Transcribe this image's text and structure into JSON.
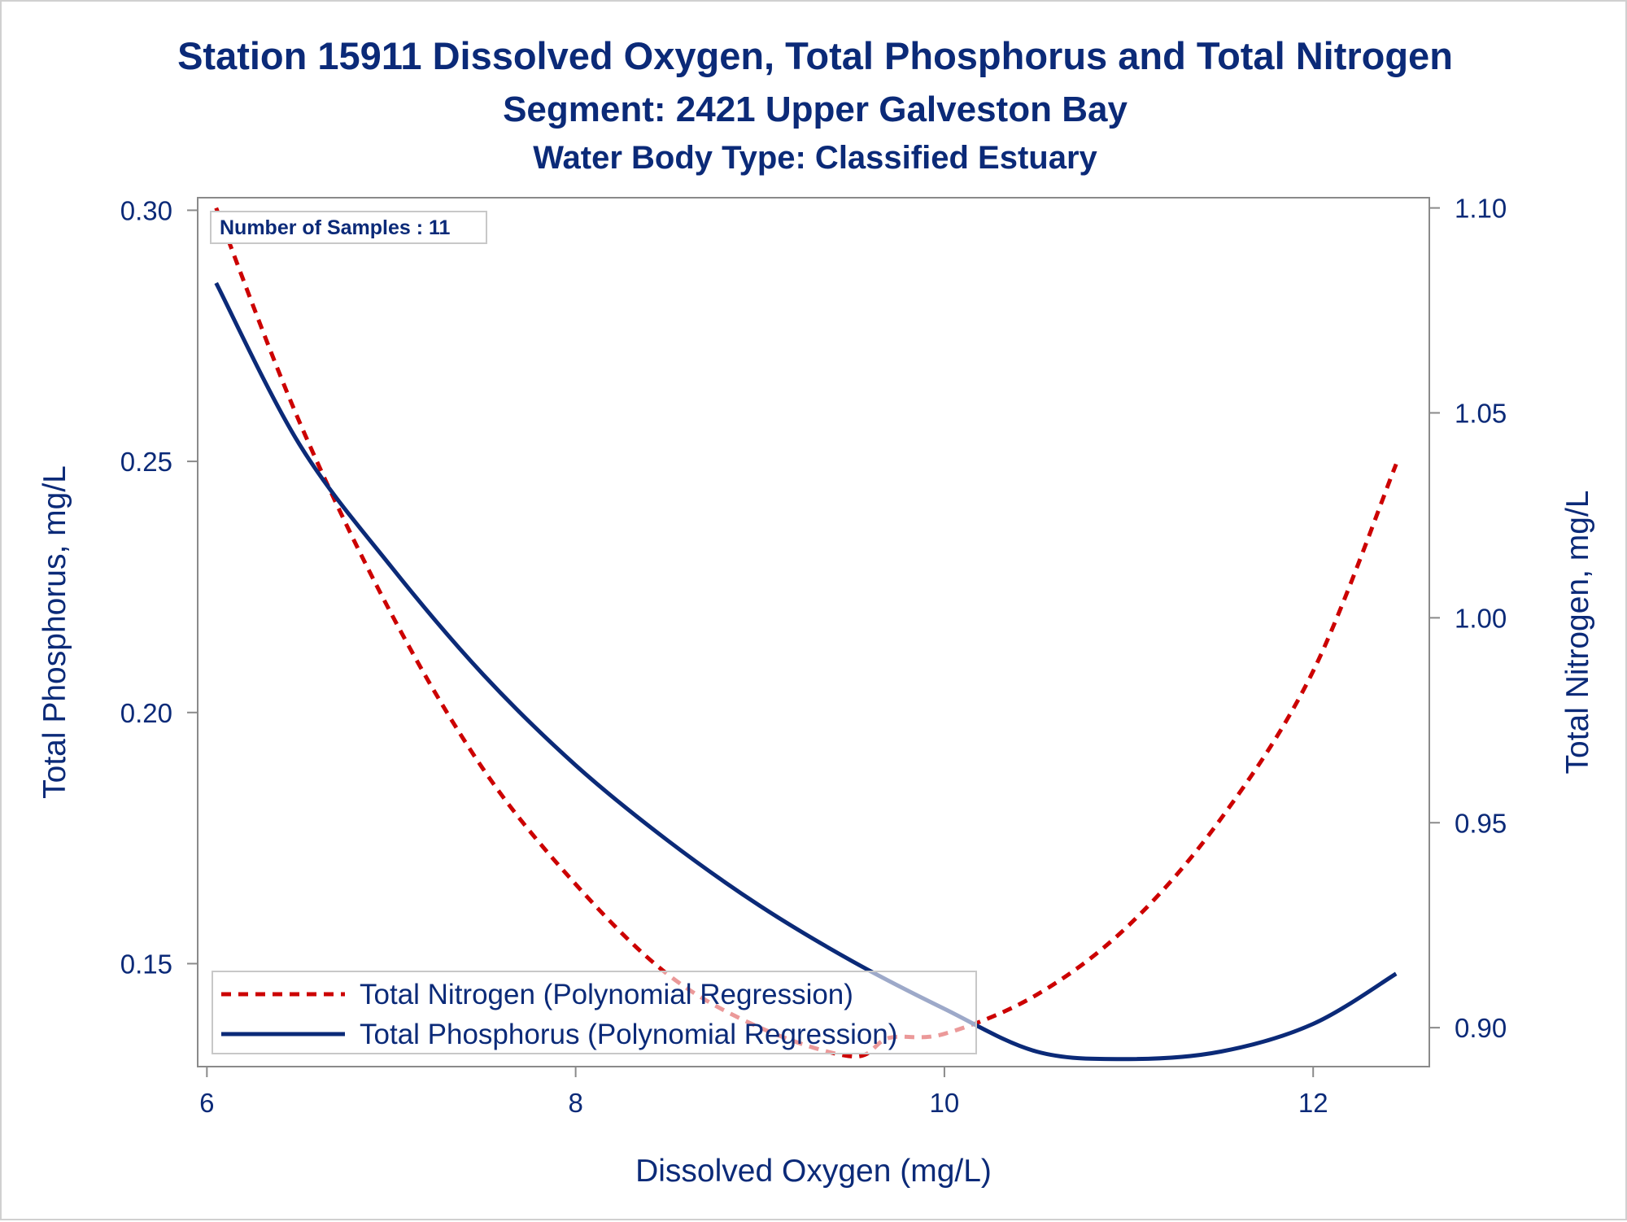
{
  "chart_data": {
    "type": "line",
    "title": "Station 15911  Dissolved Oxygen, Total Phosphorus and Total Nitrogen",
    "subtitle": "Segment: 2421  Upper Galveston Bay",
    "subtitle2": "Water Body Type: Classified Estuary",
    "xlabel": "Dissolved Oxygen (mg/L)",
    "ylabel": "Total Phosphorus, mg/L",
    "y2label": "Total Nitrogen, mg/L",
    "xlim": [
      5.95,
      12.63
    ],
    "ylim": [
      0.1295,
      0.3025
    ],
    "y2lim": [
      0.8905,
      1.1025
    ],
    "x_ticks": [
      "6",
      "8",
      "10",
      "12"
    ],
    "y_ticks": [
      "0.15",
      "0.20",
      "0.25",
      "0.30"
    ],
    "y2_ticks": [
      "0.90",
      "0.95",
      "1.00",
      "1.05",
      "1.10"
    ],
    "annotation": "Number of Samples : 11",
    "legend_position": "bottom-left inside",
    "grid": false,
    "colors": {
      "nitrogen": "#cc0000",
      "phosphorus": "#0b2a78",
      "text": "#0b2a78",
      "axis": "#8a8a8a"
    },
    "series": [
      {
        "name": "Total Nitrogen (Polynomial Regression)",
        "axis": "right",
        "style": "dashed",
        "x": [
          6.05,
          6.5,
          7.0,
          7.5,
          8.0,
          8.5,
          9.0,
          9.5,
          9.7,
          10.0,
          10.5,
          11.0,
          11.5,
          12.0,
          12.45
        ],
        "y": [
          1.1,
          1.048,
          1.001,
          0.963,
          0.935,
          0.913,
          0.9,
          0.893,
          0.8975,
          0.8985,
          0.908,
          0.925,
          0.951,
          0.987,
          1.0375
        ]
      },
      {
        "name": "Total Phosphorus (Polynomial Regression)",
        "axis": "left",
        "style": "solid",
        "x": [
          6.05,
          6.5,
          7.0,
          7.5,
          8.0,
          8.5,
          9.0,
          9.5,
          10.0,
          10.5,
          11.0,
          11.5,
          12.0,
          12.45
        ],
        "y": [
          0.2855,
          0.2535,
          0.229,
          0.2075,
          0.1895,
          0.1745,
          0.1615,
          0.1505,
          0.141,
          0.1325,
          0.131,
          0.1325,
          0.138,
          0.148
        ]
      }
    ]
  }
}
